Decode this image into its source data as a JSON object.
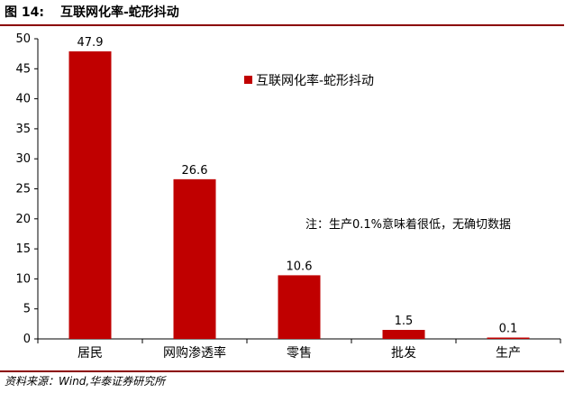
{
  "figure": {
    "number": "图 14:",
    "title": "互联网化率-蛇形抖动"
  },
  "source": "资料来源：Wind,华泰证券研究所",
  "note": "注：生产0.1%意味着很低，无确切数据",
  "colors": {
    "bar": "#c00000",
    "rule": "#8b0000"
  },
  "chart_data": {
    "type": "bar",
    "title": "",
    "xlabel": "",
    "ylabel": "",
    "categories": [
      "居民",
      "网购渗透率",
      "零售",
      "批发",
      "生产"
    ],
    "series": [
      {
        "name": "互联网化率-蛇形抖动",
        "values": [
          47.9,
          26.6,
          10.6,
          1.5,
          0.1
        ]
      }
    ],
    "data_labels": [
      "47.9",
      "26.6",
      "10.6",
      "1.5",
      "0.1"
    ],
    "ylim": [
      0,
      50
    ],
    "yticks": [
      0,
      5,
      10,
      15,
      20,
      25,
      30,
      35,
      40,
      45,
      50
    ],
    "grid": false,
    "legend_position": "top-right"
  }
}
